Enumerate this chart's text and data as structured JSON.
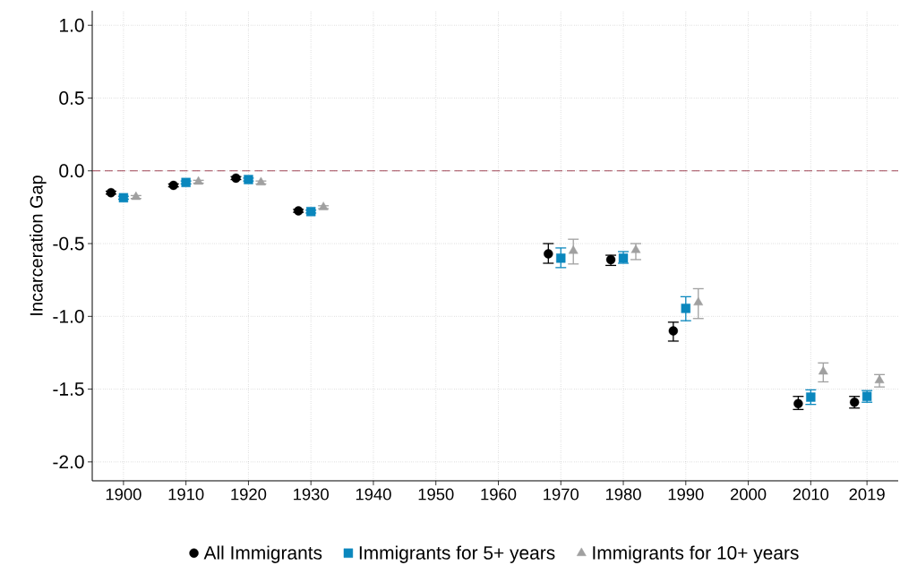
{
  "chart_data": {
    "type": "scatter",
    "ylabel": "Incarceration Gap",
    "xlim": [
      1895,
      2024
    ],
    "ylim": [
      -2.13,
      1.1
    ],
    "xticks": [
      1900,
      1910,
      1920,
      1930,
      1940,
      1950,
      1960,
      1970,
      1980,
      1990,
      2000,
      2010,
      2019
    ],
    "yticks": [
      {
        "value": 1.0,
        "label": "1.0"
      },
      {
        "value": 0.5,
        "label": "0.5"
      },
      {
        "value": 0.0,
        "label": "0.0"
      },
      {
        "value": -0.5,
        "label": "-0.5"
      },
      {
        "value": -1.0,
        "label": "-1.0"
      },
      {
        "value": -1.5,
        "label": "-1.5"
      },
      {
        "value": -2.0,
        "label": "-2.0"
      }
    ],
    "grid": true,
    "legend": "bottom",
    "ref_lines": [
      {
        "axis": "y",
        "value": 0,
        "color": "#8b1a2e",
        "line_style": "dashed"
      }
    ],
    "series": [
      {
        "name": "All Immigrants",
        "color": "#000000",
        "marker": "circle",
        "x": [
          1898,
          1908,
          1918,
          1928,
          1968,
          1978,
          1988,
          2008,
          2017
        ],
        "values": [
          -0.15,
          -0.1,
          -0.05,
          -0.275,
          -0.57,
          -0.61,
          -1.1,
          -1.6,
          -1.59
        ],
        "errors": [
          [
            -0.16,
            -0.14
          ],
          [
            -0.11,
            -0.09
          ],
          [
            -0.06,
            -0.04
          ],
          [
            -0.285,
            -0.265
          ],
          [
            -0.635,
            -0.5
          ],
          [
            -0.65,
            -0.58
          ],
          [
            -1.17,
            -1.04
          ],
          [
            -1.64,
            -1.55
          ],
          [
            -1.63,
            -1.55
          ]
        ]
      },
      {
        "name": "Immigrants for 5+ years",
        "color": "#0a87bd",
        "marker": "square",
        "x": [
          1900,
          1910,
          1920,
          1930,
          1970,
          1980,
          1990,
          2010,
          2019
        ],
        "values": [
          -0.185,
          -0.08,
          -0.06,
          -0.28,
          -0.6,
          -0.6,
          -0.945,
          -1.555,
          -1.55
        ],
        "errors": [
          [
            -0.195,
            -0.175
          ],
          [
            -0.09,
            -0.07
          ],
          [
            -0.07,
            -0.05
          ],
          [
            -0.29,
            -0.27
          ],
          [
            -0.665,
            -0.53
          ],
          [
            -0.635,
            -0.555
          ],
          [
            -1.03,
            -0.865
          ],
          [
            -1.605,
            -1.505
          ],
          [
            -1.59,
            -1.51
          ]
        ]
      },
      {
        "name": "Immigrants for 10+ years",
        "color": "#a0a0a0",
        "marker": "triangle",
        "x": [
          1902,
          1912,
          1922,
          1932,
          1972,
          1982,
          1992,
          2012,
          2021
        ],
        "values": [
          -0.18,
          -0.075,
          -0.08,
          -0.25,
          -0.55,
          -0.545,
          -0.905,
          -1.38,
          -1.44
        ],
        "errors": [
          [
            -0.19,
            -0.17
          ],
          [
            -0.085,
            -0.065
          ],
          [
            -0.09,
            -0.07
          ],
          [
            -0.26,
            -0.24
          ],
          [
            -0.64,
            -0.47
          ],
          [
            -0.61,
            -0.5
          ],
          [
            -1.015,
            -0.81
          ],
          [
            -1.45,
            -1.32
          ],
          [
            -1.485,
            -1.4
          ]
        ]
      }
    ]
  }
}
